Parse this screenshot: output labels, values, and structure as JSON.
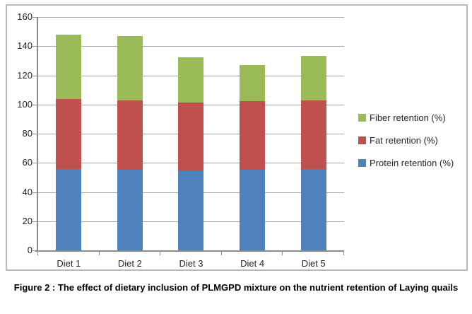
{
  "figure": {
    "caption": "Figure 2 : The effect of dietary inclusion of PLMGPD mixture on the nutrient retention of Laying quails"
  },
  "chart_data": {
    "type": "bar",
    "stacked": true,
    "title": "",
    "xlabel": "",
    "ylabel": "",
    "categories": [
      "Diet 1",
      "Diet 2",
      "Diet 3",
      "Diet 4",
      "Diet 5"
    ],
    "series": [
      {
        "name": "Protein retention (%)",
        "color": "#4f81bd",
        "values": [
          56,
          55.5,
          55,
          55.5,
          56
        ]
      },
      {
        "name": "Fat retention (%)",
        "color": "#c0504d",
        "values": [
          48,
          47.5,
          46.5,
          47,
          47
        ]
      },
      {
        "name": "Fiber retention (%)",
        "color": "#9bbb59",
        "values": [
          44,
          44,
          31,
          24.5,
          30.5
        ]
      }
    ],
    "stack_totals": [
      148,
      147,
      132.5,
      127,
      133.5
    ],
    "ylim": [
      0,
      160
    ],
    "yticks": [
      0,
      20,
      40,
      60,
      80,
      100,
      120,
      140,
      160
    ],
    "grid": true,
    "legend_position": "right",
    "legend": [
      "Fiber retention (%)",
      "Fat retention (%)",
      "Protein retention (%)"
    ]
  },
  "colors": {
    "protein_blue": "#4f81bd",
    "fat_red": "#c0504d",
    "fiber_green": "#9bbb59",
    "gridline": "#a6a6a6",
    "axis": "#8c8c8c",
    "frame_border": "#b9b9b9",
    "tick_text": "#252525",
    "caption_text": "#000000"
  }
}
